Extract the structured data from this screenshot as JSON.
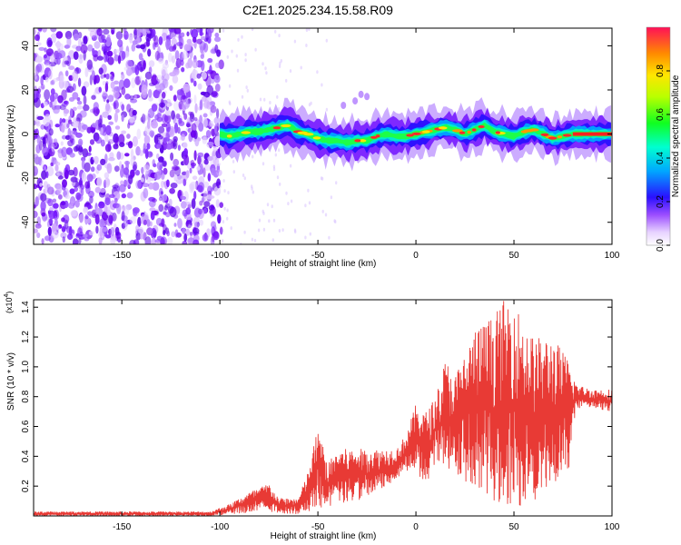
{
  "title": "C2E1.2025.234.15.58.R09",
  "chart_data": [
    {
      "type": "heatmap",
      "title": "C2E1.2025.234.15.58.R09",
      "xlabel": "Height of straight line (km)",
      "ylabel": "Frequency (Hz)",
      "xlim": [
        -195,
        100
      ],
      "ylim": [
        -50,
        48
      ],
      "x_ticks": [
        -150,
        -100,
        -50,
        0,
        50,
        100
      ],
      "y_ticks": [
        -40,
        -20,
        0,
        20,
        40
      ],
      "colorbar": {
        "label": "Normalized spectral amplitude",
        "range": [
          0,
          1
        ],
        "ticks": [
          0.0,
          0.2,
          0.4,
          0.6,
          0.8
        ],
        "tick_labels": [
          "0.0",
          "0.2",
          "0.4",
          "0.6",
          "0.8"
        ]
      },
      "regions": [
        {
          "name": "broadband noise",
          "x_range": [
            -195,
            -102
          ],
          "freq_range": [
            -50,
            48
          ],
          "amplitude": 0.15
        },
        {
          "name": "signal track",
          "x_range": [
            -102,
            100
          ],
          "freq_center": 0,
          "amplitude": 0.9
        }
      ],
      "track_freq": [
        [
          -100,
          0
        ],
        [
          -95,
          -1
        ],
        [
          -90,
          0
        ],
        [
          -85,
          1
        ],
        [
          -80,
          1
        ],
        [
          -75,
          2
        ],
        [
          -70,
          3
        ],
        [
          -65,
          4
        ],
        [
          -60,
          1
        ],
        [
          -55,
          0
        ],
        [
          -50,
          -2
        ],
        [
          -45,
          -3
        ],
        [
          -40,
          -3
        ],
        [
          -35,
          -4
        ],
        [
          -30,
          -3
        ],
        [
          -25,
          -3
        ],
        [
          -20,
          -1
        ],
        [
          -15,
          0
        ],
        [
          -10,
          -1
        ],
        [
          -5,
          -1
        ],
        [
          0,
          0
        ],
        [
          5,
          1
        ],
        [
          10,
          2
        ],
        [
          15,
          3
        ],
        [
          20,
          2
        ],
        [
          25,
          0
        ],
        [
          30,
          2
        ],
        [
          35,
          4
        ],
        [
          40,
          1
        ],
        [
          45,
          0
        ],
        [
          50,
          -1
        ],
        [
          55,
          1
        ],
        [
          60,
          2
        ],
        [
          65,
          0
        ],
        [
          70,
          -2
        ],
        [
          75,
          -1
        ],
        [
          80,
          0
        ],
        [
          90,
          0
        ],
        [
          100,
          0
        ]
      ]
    },
    {
      "type": "line",
      "xlabel": "Height of straight line (km)",
      "ylabel": "SNR (10 * v/v)",
      "multiplier_label": "(x10",
      "multiplier_exp": "4",
      "multiplier_close": ")",
      "xlim": [
        -195,
        100
      ],
      "ylim": [
        0,
        1.45
      ],
      "x_ticks": [
        -150,
        -100,
        -50,
        0,
        50,
        100
      ],
      "y_ticks": [
        0.2,
        0.4,
        0.6,
        0.8,
        1.0,
        1.2,
        1.4
      ],
      "y_tick_labels": [
        "0.2",
        "0.4",
        "0.6",
        "0.8",
        "1.0",
        "1.2",
        "1.4"
      ],
      "series": [
        {
          "name": "SNR",
          "color": "#e83a35",
          "envelope": [
            {
              "x": -195,
              "min": 0.0,
              "max": 0.03
            },
            {
              "x": -105,
              "min": 0.0,
              "max": 0.03
            },
            {
              "x": -95,
              "min": 0.01,
              "max": 0.08
            },
            {
              "x": -85,
              "min": 0.02,
              "max": 0.16
            },
            {
              "x": -75,
              "min": 0.03,
              "max": 0.22
            },
            {
              "x": -70,
              "min": 0.02,
              "max": 0.12
            },
            {
              "x": -60,
              "min": 0.01,
              "max": 0.12
            },
            {
              "x": -55,
              "min": 0.03,
              "max": 0.3
            },
            {
              "x": -50,
              "min": 0.05,
              "max": 0.6
            },
            {
              "x": -45,
              "min": 0.05,
              "max": 0.35
            },
            {
              "x": -40,
              "min": 0.08,
              "max": 0.45
            },
            {
              "x": -30,
              "min": 0.1,
              "max": 0.45
            },
            {
              "x": -20,
              "min": 0.15,
              "max": 0.45
            },
            {
              "x": -10,
              "min": 0.25,
              "max": 0.45
            },
            {
              "x": -5,
              "min": 0.3,
              "max": 0.55
            },
            {
              "x": 0,
              "min": 0.3,
              "max": 0.75
            },
            {
              "x": 5,
              "min": 0.2,
              "max": 0.7
            },
            {
              "x": 10,
              "min": 0.35,
              "max": 0.8
            },
            {
              "x": 15,
              "min": 0.3,
              "max": 1.05
            },
            {
              "x": 20,
              "min": 0.25,
              "max": 0.95
            },
            {
              "x": 30,
              "min": 0.2,
              "max": 1.25
            },
            {
              "x": 40,
              "min": 0.1,
              "max": 1.35
            },
            {
              "x": 45,
              "min": 0.05,
              "max": 1.45
            },
            {
              "x": 50,
              "min": 0.1,
              "max": 1.45
            },
            {
              "x": 55,
              "min": 0.05,
              "max": 1.3
            },
            {
              "x": 60,
              "min": 0.1,
              "max": 1.2
            },
            {
              "x": 70,
              "min": 0.2,
              "max": 1.2
            },
            {
              "x": 78,
              "min": 0.3,
              "max": 1.05
            },
            {
              "x": 82,
              "min": 0.72,
              "max": 0.88
            },
            {
              "x": 90,
              "min": 0.72,
              "max": 0.85
            },
            {
              "x": 100,
              "min": 0.7,
              "max": 0.85
            }
          ]
        }
      ]
    }
  ]
}
